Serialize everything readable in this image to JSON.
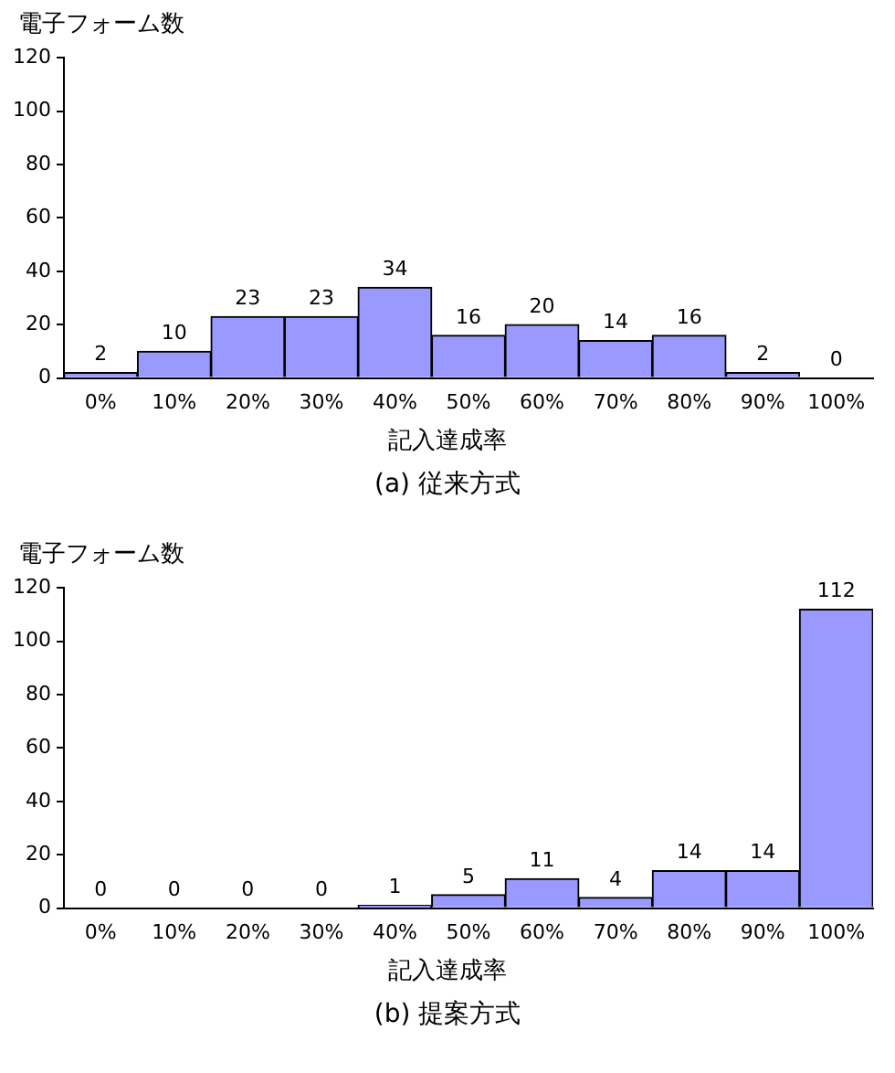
{
  "chart_data": [
    {
      "type": "bar",
      "ylabel": "電子フォーム数",
      "xlabel": "記入達成率",
      "annotations": [
        "(a) 従来方式"
      ],
      "categories": [
        "0%",
        "10%",
        "20%",
        "30%",
        "40%",
        "50%",
        "60%",
        "70%",
        "80%",
        "90%",
        "100%"
      ],
      "values": [
        2,
        10,
        23,
        23,
        34,
        16,
        20,
        14,
        16,
        2,
        0
      ],
      "color": "#9999ff",
      "ylim": [
        0,
        120
      ],
      "yticks": [
        0,
        20,
        40,
        60,
        80,
        100,
        120
      ],
      "data_labels": true
    },
    {
      "type": "bar",
      "ylabel": "電子フォーム数",
      "xlabel": "記入達成率",
      "annotations": [
        "(b) 提案方式"
      ],
      "categories": [
        "0%",
        "10%",
        "20%",
        "30%",
        "40%",
        "50%",
        "60%",
        "70%",
        "80%",
        "90%",
        "100%"
      ],
      "values": [
        0,
        0,
        0,
        0,
        1,
        5,
        11,
        4,
        14,
        14,
        112
      ],
      "color": "#9999ff",
      "ylim": [
        0,
        120
      ],
      "yticks": [
        0,
        20,
        40,
        60,
        80,
        100,
        120
      ],
      "data_labels": true
    }
  ]
}
